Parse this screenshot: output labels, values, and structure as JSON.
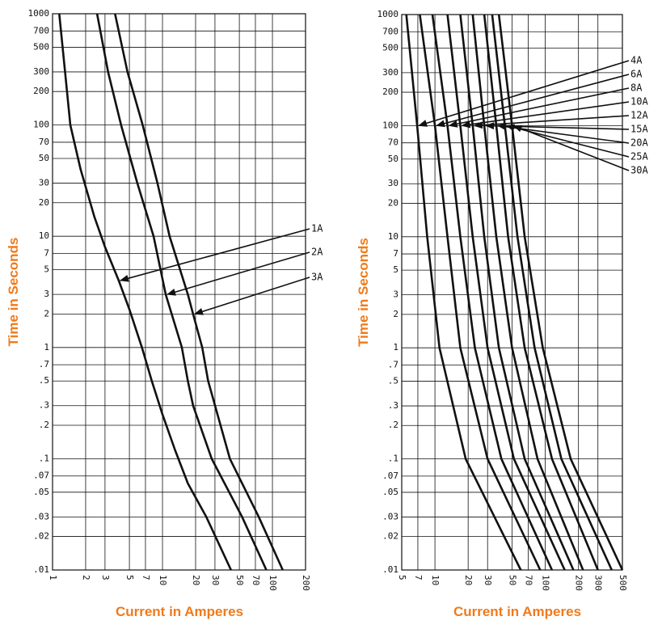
{
  "chart_data": [
    {
      "type": "line",
      "x_label": "Current in Amperes",
      "y_label": "Time in Seconds",
      "xscale": "log",
      "yscale": "log",
      "grid": true,
      "color": "#111111",
      "xlim": [
        1,
        200
      ],
      "ylim": [
        0.01,
        1000
      ],
      "xticks": [
        1,
        2,
        3,
        5,
        7,
        10,
        20,
        30,
        50,
        70,
        100,
        200
      ],
      "yticks": [
        1000,
        700,
        500,
        300,
        200,
        100,
        70,
        50,
        30,
        20,
        10,
        7,
        5,
        3,
        2,
        1,
        {
          "value": 0.7,
          "label": ".7"
        },
        {
          "value": 0.5,
          "label": ".5"
        },
        {
          "value": 0.3,
          "label": ".3"
        },
        {
          "value": 0.2,
          "label": ".2"
        },
        {
          "value": 0.1,
          "label": ".1"
        },
        {
          "value": 0.07,
          "label": ".07"
        },
        {
          "value": 0.05,
          "label": ".05"
        },
        {
          "value": 0.03,
          "label": ".03"
        },
        {
          "value": 0.02,
          "label": ".02"
        },
        {
          "value": 0.01,
          "label": ".01"
        }
      ],
      "series": [
        {
          "name": "1A",
          "x": [
            1.15,
            1.3,
            1.45,
            1.8,
            2.4,
            3,
            4,
            5,
            6.5,
            8,
            10,
            13,
            17,
            25,
            42
          ],
          "values": [
            1000,
            300,
            100,
            40,
            15,
            8,
            4,
            2.2,
            1,
            0.5,
            0.25,
            0.12,
            0.06,
            0.03,
            0.01
          ]
        },
        {
          "name": "2A",
          "x": [
            2.54,
            3.2,
            4.2,
            5.9,
            8.3,
            10.7,
            15,
            17,
            19,
            28,
            53,
            88
          ],
          "values": [
            1000,
            300,
            100,
            30,
            10,
            3,
            1,
            0.5,
            0.3,
            0.1,
            0.03,
            0.01
          ]
        },
        {
          "name": "3A",
          "x": [
            3.7,
            4.8,
            6.6,
            9,
            11.6,
            17,
            19,
            23,
            26,
            41,
            75,
            124
          ],
          "values": [
            1000,
            300,
            100,
            30,
            10,
            3,
            2,
            1,
            0.5,
            0.1,
            0.03,
            0.01
          ]
        }
      ]
    },
    {
      "type": "line",
      "x_label": "Current in Amperes",
      "y_label": "Time in Seconds",
      "xscale": "log",
      "yscale": "log",
      "grid": true,
      "color": "#111111",
      "xlim": [
        5,
        500
      ],
      "ylim": [
        0.01,
        1000
      ],
      "xticks": [
        5,
        7,
        10,
        20,
        30,
        50,
        70,
        100,
        200,
        300,
        500
      ],
      "yticks": [
        1000,
        700,
        500,
        300,
        200,
        100,
        70,
        50,
        30,
        20,
        10,
        7,
        5,
        3,
        2,
        1,
        {
          "value": 0.7,
          "label": ".7"
        },
        {
          "value": 0.5,
          "label": ".5"
        },
        {
          "value": 0.3,
          "label": ".3"
        },
        {
          "value": 0.2,
          "label": ".2"
        },
        {
          "value": 0.1,
          "label": ".1"
        },
        {
          "value": 0.07,
          "label": ".07"
        },
        {
          "value": 0.05,
          "label": ".05"
        },
        {
          "value": 0.03,
          "label": ".03"
        },
        {
          "value": 0.02,
          "label": ".02"
        },
        {
          "value": 0.01,
          "label": ".01"
        }
      ],
      "series": [
        {
          "name": "4A",
          "x": [
            5.5,
            6.9,
            8.5,
            11,
            19,
            60
          ],
          "values": [
            1000,
            100,
            10,
            1,
            0.1,
            0.01
          ]
        },
        {
          "name": "6A",
          "x": [
            7.3,
            10,
            13,
            17,
            30,
            90
          ],
          "values": [
            1000,
            100,
            10,
            1,
            0.1,
            0.01
          ]
        },
        {
          "name": "8A",
          "x": [
            9.5,
            13,
            17,
            23,
            40,
            115
          ],
          "values": [
            1000,
            100,
            10,
            1,
            0.1,
            0.01
          ]
        },
        {
          "name": "10A",
          "x": [
            13,
            17,
            22,
            30,
            52,
            150
          ],
          "values": [
            1000,
            100,
            10,
            1,
            0.1,
            0.01
          ]
        },
        {
          "name": "12A",
          "x": [
            17,
            22,
            28,
            38,
            65,
            180
          ],
          "values": [
            1000,
            100,
            10,
            1,
            0.1,
            0.01
          ]
        },
        {
          "name": "15A",
          "x": [
            22,
            28,
            36,
            50,
            85,
            220
          ],
          "values": [
            1000,
            100,
            10,
            1,
            0.1,
            0.01
          ]
        },
        {
          "name": "20A",
          "x": [
            28,
            36,
            46,
            65,
            115,
            300
          ],
          "values": [
            1000,
            100,
            10,
            1,
            0.1,
            0.01
          ]
        },
        {
          "name": "25A",
          "x": [
            33,
            43,
            56,
            80,
            140,
            400
          ],
          "values": [
            1000,
            100,
            10,
            1,
            0.1,
            0.01
          ]
        },
        {
          "name": "30A",
          "x": [
            38,
            50,
            65,
            95,
            170,
            500
          ],
          "values": [
            1000,
            100,
            10,
            1,
            0.1,
            0.01
          ]
        }
      ]
    }
  ]
}
